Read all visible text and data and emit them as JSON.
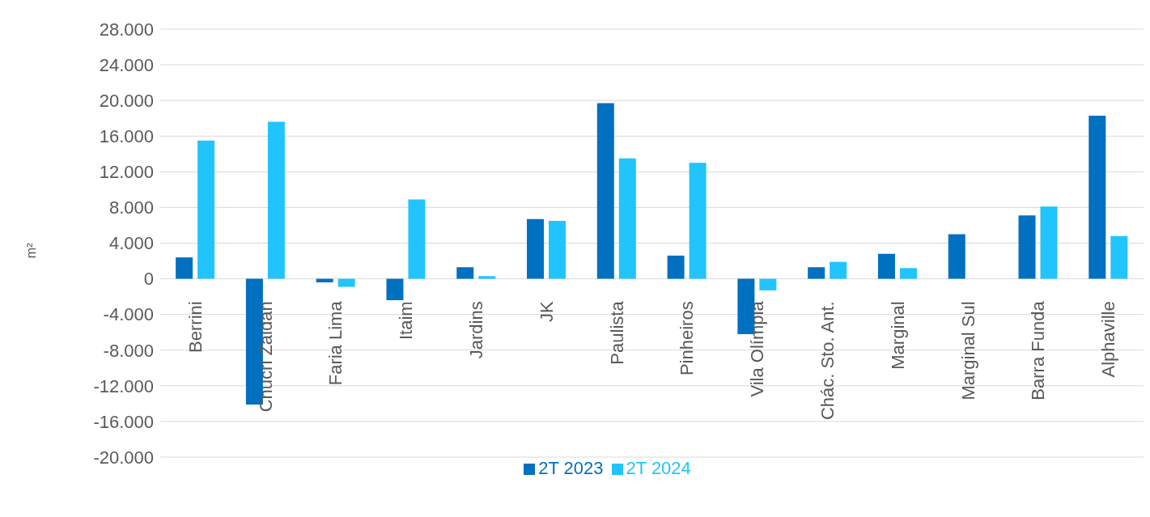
{
  "chart_data": {
    "type": "bar",
    "ylabel": "m²",
    "categories": [
      "Berrini",
      "Chucri Zaidan",
      "Faria Lima",
      "Itaim",
      "Jardins",
      "JK",
      "Paulista",
      "Pinheiros",
      "Vila Olímpia",
      "Chác. Sto. Ant.",
      "Marginal",
      "Marginal Sul",
      "Barra Funda",
      "Alphaville"
    ],
    "series": [
      {
        "name": "2T 2023",
        "color": "#0070c0",
        "values": [
          2400,
          -14100,
          -400,
          -2400,
          1300,
          6700,
          19700,
          2600,
          -6200,
          1300,
          2800,
          5000,
          7100,
          18300
        ]
      },
      {
        "name": "2T 2024",
        "color": "#21c4fc",
        "values": [
          15500,
          17600,
          -900,
          8900,
          300,
          6500,
          13500,
          13000,
          -1300,
          1900,
          1200,
          0,
          8100,
          4800
        ]
      }
    ],
    "ylim": [
      -20000,
      28000
    ],
    "yticks": [
      {
        "value": -20000,
        "label": "-20.000"
      },
      {
        "value": -16000,
        "label": "-16.000"
      },
      {
        "value": -12000,
        "label": "-12.000"
      },
      {
        "value": -8000,
        "label": "-8.000"
      },
      {
        "value": -4000,
        "label": "-4.000"
      },
      {
        "value": 0,
        "label": "0"
      },
      {
        "value": 4000,
        "label": "4.000"
      },
      {
        "value": 8000,
        "label": "8.000"
      },
      {
        "value": 12000,
        "label": "12.000"
      },
      {
        "value": 16000,
        "label": "16.000"
      },
      {
        "value": 20000,
        "label": "20.000"
      },
      {
        "value": 24000,
        "label": "24.000"
      },
      {
        "value": 28000,
        "label": "28.000"
      }
    ],
    "grid": "y",
    "legend": "bottom"
  }
}
